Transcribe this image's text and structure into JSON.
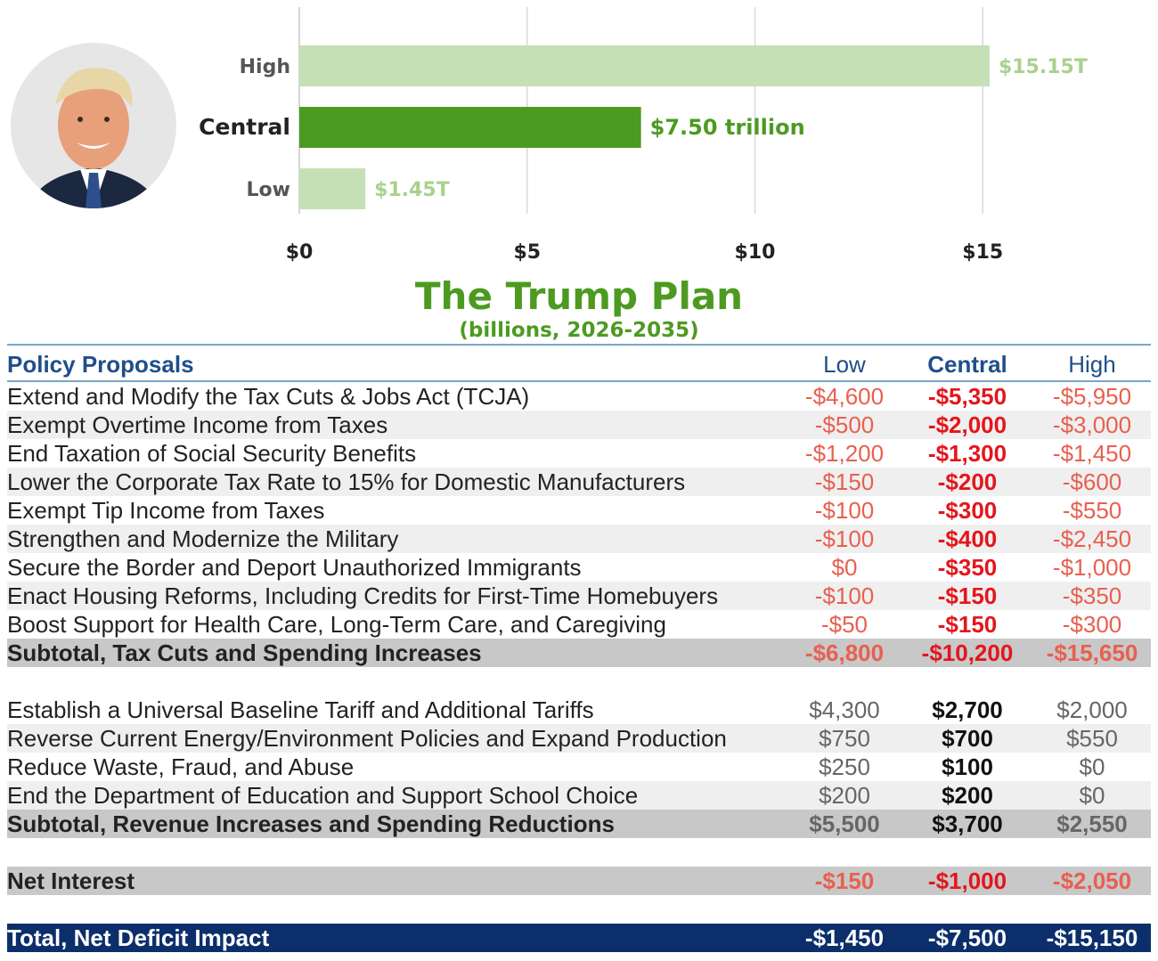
{
  "chart_data": {
    "type": "bar",
    "orientation": "horizontal",
    "categories": [
      "High",
      "Central",
      "Low"
    ],
    "values": [
      15.15,
      7.5,
      1.45
    ],
    "data_labels": [
      "$15.15T",
      "$7.50 trillion",
      "$1.45T"
    ],
    "x_ticks": [
      "$0",
      "$5",
      "$10",
      "$15"
    ],
    "xlim": [
      0,
      16.5
    ],
    "grid": true,
    "colors": {
      "High": "#c5e0b4",
      "Central": "#4d9a21",
      "Low": "#c5e0b4"
    },
    "label_colors": {
      "High": "#a9d18e",
      "Central": "#4d9a21",
      "Low": "#a9d18e"
    }
  },
  "title": "The Trump Plan",
  "subtitle": "(billions, 2026-2035)",
  "table": {
    "headers": [
      "Policy Proposals",
      "Low",
      "Central",
      "High"
    ],
    "section1": [
      {
        "label": "Extend and Modify the Tax Cuts & Jobs Act (TCJA)",
        "low": "-$4,600",
        "central": "-$5,350",
        "high": "-$5,950"
      },
      {
        "label": "Exempt Overtime Income from Taxes",
        "low": "-$500",
        "central": "-$2,000",
        "high": "-$3,000"
      },
      {
        "label": "End Taxation of Social Security Benefits",
        "low": "-$1,200",
        "central": "-$1,300",
        "high": "-$1,450"
      },
      {
        "label": "Lower the Corporate Tax Rate to 15% for Domestic Manufacturers",
        "low": "-$150",
        "central": "-$200",
        "high": "-$600"
      },
      {
        "label": "Exempt Tip Income from Taxes",
        "low": "-$100",
        "central": "-$300",
        "high": "-$550"
      },
      {
        "label": "Strengthen and Modernize the Military",
        "low": "-$100",
        "central": "-$400",
        "high": "-$2,450"
      },
      {
        "label": "Secure the Border and Deport Unauthorized Immigrants",
        "low": "$0",
        "central": "-$350",
        "high": "-$1,000"
      },
      {
        "label": "Enact Housing Reforms, Including Credits for First-Time Homebuyers",
        "low": "-$100",
        "central": "-$150",
        "high": "-$350"
      },
      {
        "label": "Boost Support for Health Care, Long-Term Care, and Caregiving",
        "low": "-$50",
        "central": "-$150",
        "high": "-$300"
      }
    ],
    "subtotal1": {
      "label": "Subtotal, Tax Cuts and Spending Increases",
      "low": "-$6,800",
      "central": "-$10,200",
      "high": "-$15,650"
    },
    "section2": [
      {
        "label": "Establish a Universal Baseline Tariff and Additional Tariffs",
        "low": "$4,300",
        "central": "$2,700",
        "high": "$2,000"
      },
      {
        "label": "Reverse Current Energy/Environment Policies and Expand Production",
        "low": "$750",
        "central": "$700",
        "high": "$550"
      },
      {
        "label": "Reduce Waste, Fraud, and Abuse",
        "low": "$250",
        "central": "$100",
        "high": "$0"
      },
      {
        "label": "End the Department of Education and Support School Choice",
        "low": "$200",
        "central": "$200",
        "high": "$0"
      }
    ],
    "subtotal2": {
      "label": "Subtotal, Revenue Increases and Spending Reductions",
      "low": "$5,500",
      "central": "$3,700",
      "high": "$2,550"
    },
    "net_interest": {
      "label": "Net Interest",
      "low": "-$150",
      "central": "-$1,000",
      "high": "-$2,050"
    },
    "total": {
      "label": "Total, Net Deficit Impact",
      "low": "-$1,450",
      "central": "-$7,500",
      "high": "-$15,150"
    }
  }
}
